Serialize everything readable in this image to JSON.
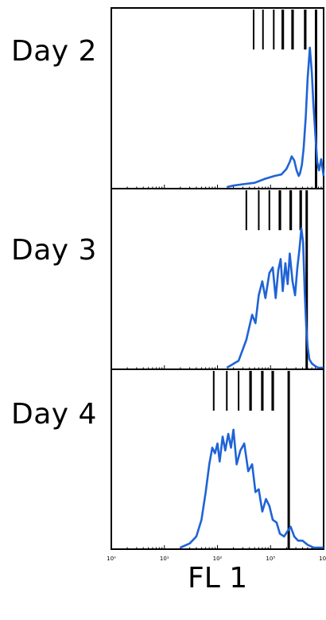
{
  "chart_data": {
    "type": "line",
    "xlabel": "FL 1",
    "x_scale": "log",
    "xlim": [
      1,
      10000
    ],
    "x_ticks": [
      1,
      10,
      100,
      1000,
      10000
    ],
    "series_color": "#1f63d6",
    "marker_color": "#000000",
    "panels": [
      {
        "name": "Day 2",
        "generation_markers": [
          480,
          720,
          1150,
          1700,
          2600,
          4500
        ],
        "bold_marker": 7200,
        "x": [
          150,
          200,
          300,
          500,
          800,
          1200,
          1600,
          2000,
          2300,
          2500,
          2800,
          3100,
          3400,
          3600,
          3900,
          4200,
          4600,
          5000,
          5500,
          6000,
          6400,
          6800,
          7200,
          7600,
          8200,
          9000,
          10000
        ],
        "y": [
          0.0,
          0.01,
          0.02,
          0.03,
          0.06,
          0.08,
          0.09,
          0.13,
          0.18,
          0.22,
          0.19,
          0.12,
          0.08,
          0.1,
          0.16,
          0.28,
          0.5,
          0.78,
          1.0,
          0.82,
          0.6,
          0.45,
          0.3,
          0.18,
          0.12,
          0.2,
          0.08
        ]
      },
      {
        "name": "Day 3",
        "generation_markers": [
          350,
          600,
          950,
          1500,
          2400,
          3700
        ],
        "bold_marker": 4800,
        "x": [
          150,
          250,
          350,
          450,
          520,
          600,
          700,
          800,
          950,
          1100,
          1250,
          1400,
          1550,
          1700,
          1900,
          2100,
          2300,
          2600,
          2900,
          3200,
          3500,
          3800,
          4100,
          4400,
          4700,
          5000,
          5400,
          6000,
          7000,
          8000,
          10000
        ],
        "y": [
          0.0,
          0.05,
          0.2,
          0.38,
          0.32,
          0.52,
          0.62,
          0.5,
          0.68,
          0.72,
          0.5,
          0.7,
          0.78,
          0.55,
          0.75,
          0.6,
          0.82,
          0.62,
          0.52,
          0.72,
          0.85,
          1.0,
          0.9,
          0.55,
          0.3,
          0.15,
          0.06,
          0.03,
          0.01,
          0.0,
          0.0
        ]
      },
      {
        "name": "Day 4",
        "generation_markers": [
          85,
          150,
          250,
          420,
          700,
          1100
        ],
        "bold_marker": 2200,
        "x": [
          20,
          30,
          40,
          50,
          60,
          70,
          80,
          90,
          100,
          110,
          125,
          140,
          160,
          180,
          200,
          230,
          270,
          320,
          380,
          450,
          520,
          600,
          700,
          820,
          950,
          1100,
          1300,
          1500,
          1800,
          2100,
          2400,
          2800,
          3300,
          4000,
          5000,
          6500,
          8500,
          10000
        ],
        "y": [
          0.0,
          0.03,
          0.08,
          0.2,
          0.4,
          0.6,
          0.72,
          0.68,
          0.75,
          0.62,
          0.8,
          0.7,
          0.82,
          0.72,
          0.85,
          0.6,
          0.7,
          0.75,
          0.55,
          0.6,
          0.4,
          0.42,
          0.26,
          0.35,
          0.3,
          0.2,
          0.18,
          0.1,
          0.08,
          0.12,
          0.15,
          0.08,
          0.05,
          0.05,
          0.02,
          0.0,
          0.0,
          0.0
        ]
      }
    ]
  }
}
